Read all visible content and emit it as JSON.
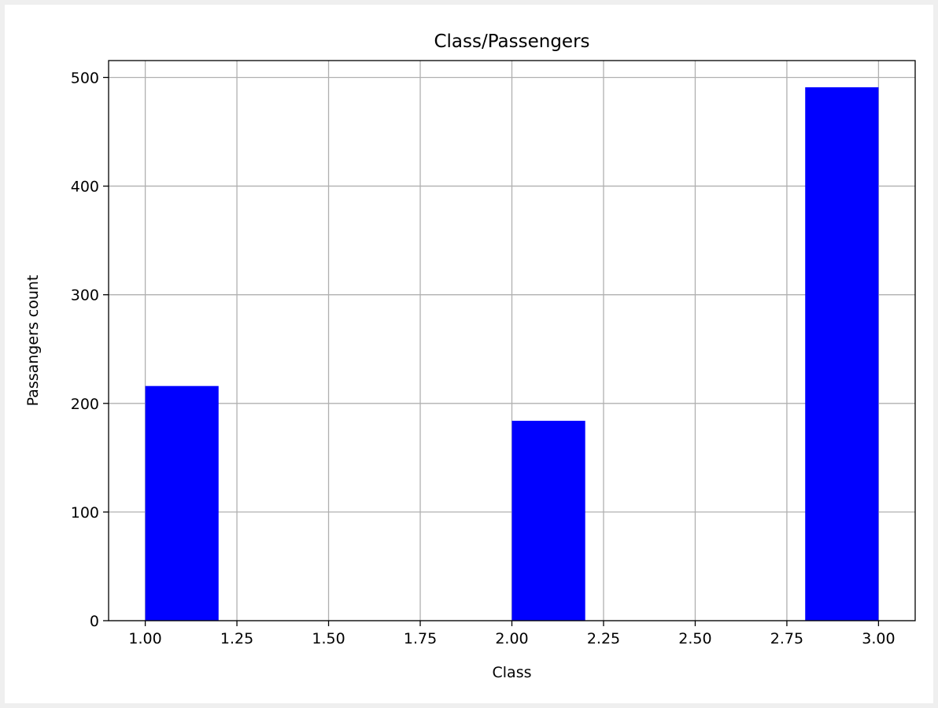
{
  "chart_data": {
    "type": "bar",
    "title": "Class/Passengers",
    "xlabel": "Class",
    "ylabel": "Passangers count",
    "bars": [
      {
        "x_start": 1.0,
        "x_end": 1.2,
        "value": 216
      },
      {
        "x_start": 2.0,
        "x_end": 2.2,
        "value": 184
      },
      {
        "x_start": 2.8,
        "x_end": 3.0,
        "value": 491
      }
    ],
    "xlim": [
      0.9,
      3.1
    ],
    "ylim": [
      0,
      515.55
    ],
    "x_ticks": [
      "1.00",
      "1.25",
      "1.50",
      "1.75",
      "2.00",
      "2.25",
      "2.50",
      "2.75",
      "3.00"
    ],
    "x_tick_values": [
      1.0,
      1.25,
      1.5,
      1.75,
      2.0,
      2.25,
      2.5,
      2.75,
      3.0
    ],
    "y_ticks": [
      "0",
      "100",
      "200",
      "300",
      "400",
      "500"
    ],
    "y_tick_values": [
      0,
      100,
      200,
      300,
      400,
      500
    ],
    "grid": true,
    "bar_color": "#0000ff",
    "grid_color": "#b0b0b0"
  }
}
